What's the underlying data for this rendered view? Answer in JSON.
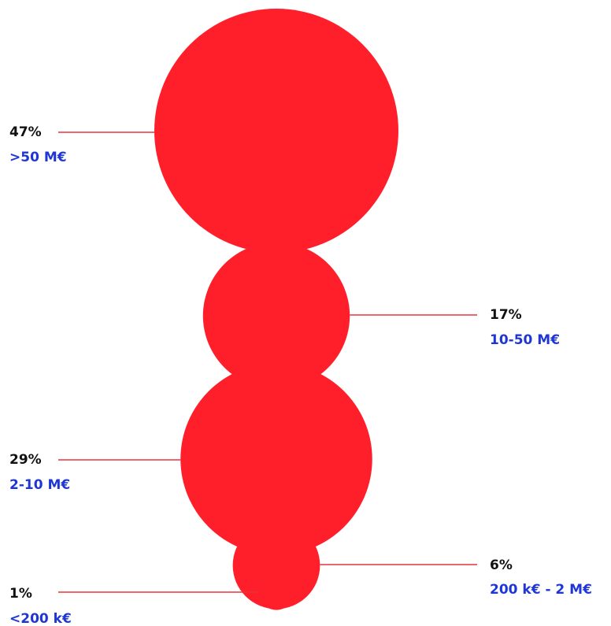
{
  "chart_data": {
    "type": "bubble",
    "unit": "%",
    "items": [
      {
        "label": ">50 M€",
        "value": 47,
        "value_label": "47%"
      },
      {
        "label": "10-50 M€",
        "value": 17,
        "value_label": "17%"
      },
      {
        "label": "2-10 M€",
        "value": 29,
        "value_label": "29%"
      },
      {
        "label": "200 k€ - 2 M€",
        "value": 6,
        "value_label": "6%"
      },
      {
        "label": "<200 k€",
        "value": 1,
        "value_label": "1%"
      }
    ]
  },
  "colors": {
    "bubble": "#ff1f2b",
    "leader": "#e8323c",
    "value_text": "#111111",
    "category_text": "#1f36d6"
  }
}
